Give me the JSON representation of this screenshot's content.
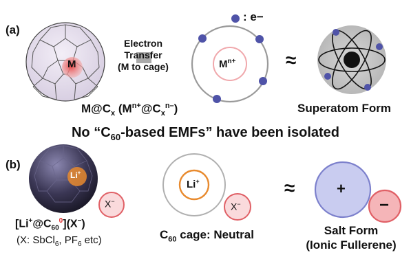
{
  "panel_a": {
    "label": "(a)",
    "legend_label": ": e−",
    "metal_symbol": "M",
    "transfer_line1": "Electron",
    "transfer_line2": "Transfer",
    "transfer_line3": "(M to cage)",
    "ion_main": "M",
    "ion_sup": "n+",
    "approx": "≈",
    "formula_pre": "M@C",
    "formula_sub1": "x",
    "formula_mid": " (M",
    "formula_sup1": "n+",
    "formula_mid2": "@C",
    "formula_sub2": "x",
    "formula_sup2": "n–",
    "formula_end": ")",
    "superatom_caption": "Superatom Form"
  },
  "headline": {
    "pre": "No “C",
    "sub": "60",
    "post": "-based EMFs” have been isolated"
  },
  "panel_b": {
    "label": "(b)",
    "li_label": "Li",
    "li_sup": "+",
    "x_label": "X",
    "x_sup": "−",
    "formula_pre": "[Li",
    "formula_sup1": "+",
    "formula_mid": "@C",
    "formula_sub": "60",
    "formula_sup2": "0",
    "formula_end": "](X",
    "formula_sup3": "−",
    "formula_close": ")",
    "x_note_pre": "(X: SbCl",
    "x_note_sub1": "6",
    "x_note_mid": ", PF",
    "x_note_sub2": "6",
    "x_note_end": " etc)",
    "li_mid": "Li",
    "li_mid_sup": "+",
    "x_mid": "X",
    "x_mid_sup": "−",
    "cage_pre": "C",
    "cage_sub": "60",
    "cage_post": " cage: Neutral",
    "approx": "≈",
    "plus": "+",
    "minus": "−",
    "salt_line1": "Salt Form",
    "salt_line2": "(Ionic Fullerene)"
  },
  "colors": {
    "electron": "#4f53a8",
    "metal_red": "#e04a4a",
    "ring_gray": "#9a9a9a",
    "anion_pink": "#f5b5b8",
    "anion_border": "#e06066",
    "cation_blue": "#c9ccf0",
    "cation_border": "#7c80cc",
    "li_orange": "#e88a2e",
    "transfer_box": "#a9a9a9"
  }
}
